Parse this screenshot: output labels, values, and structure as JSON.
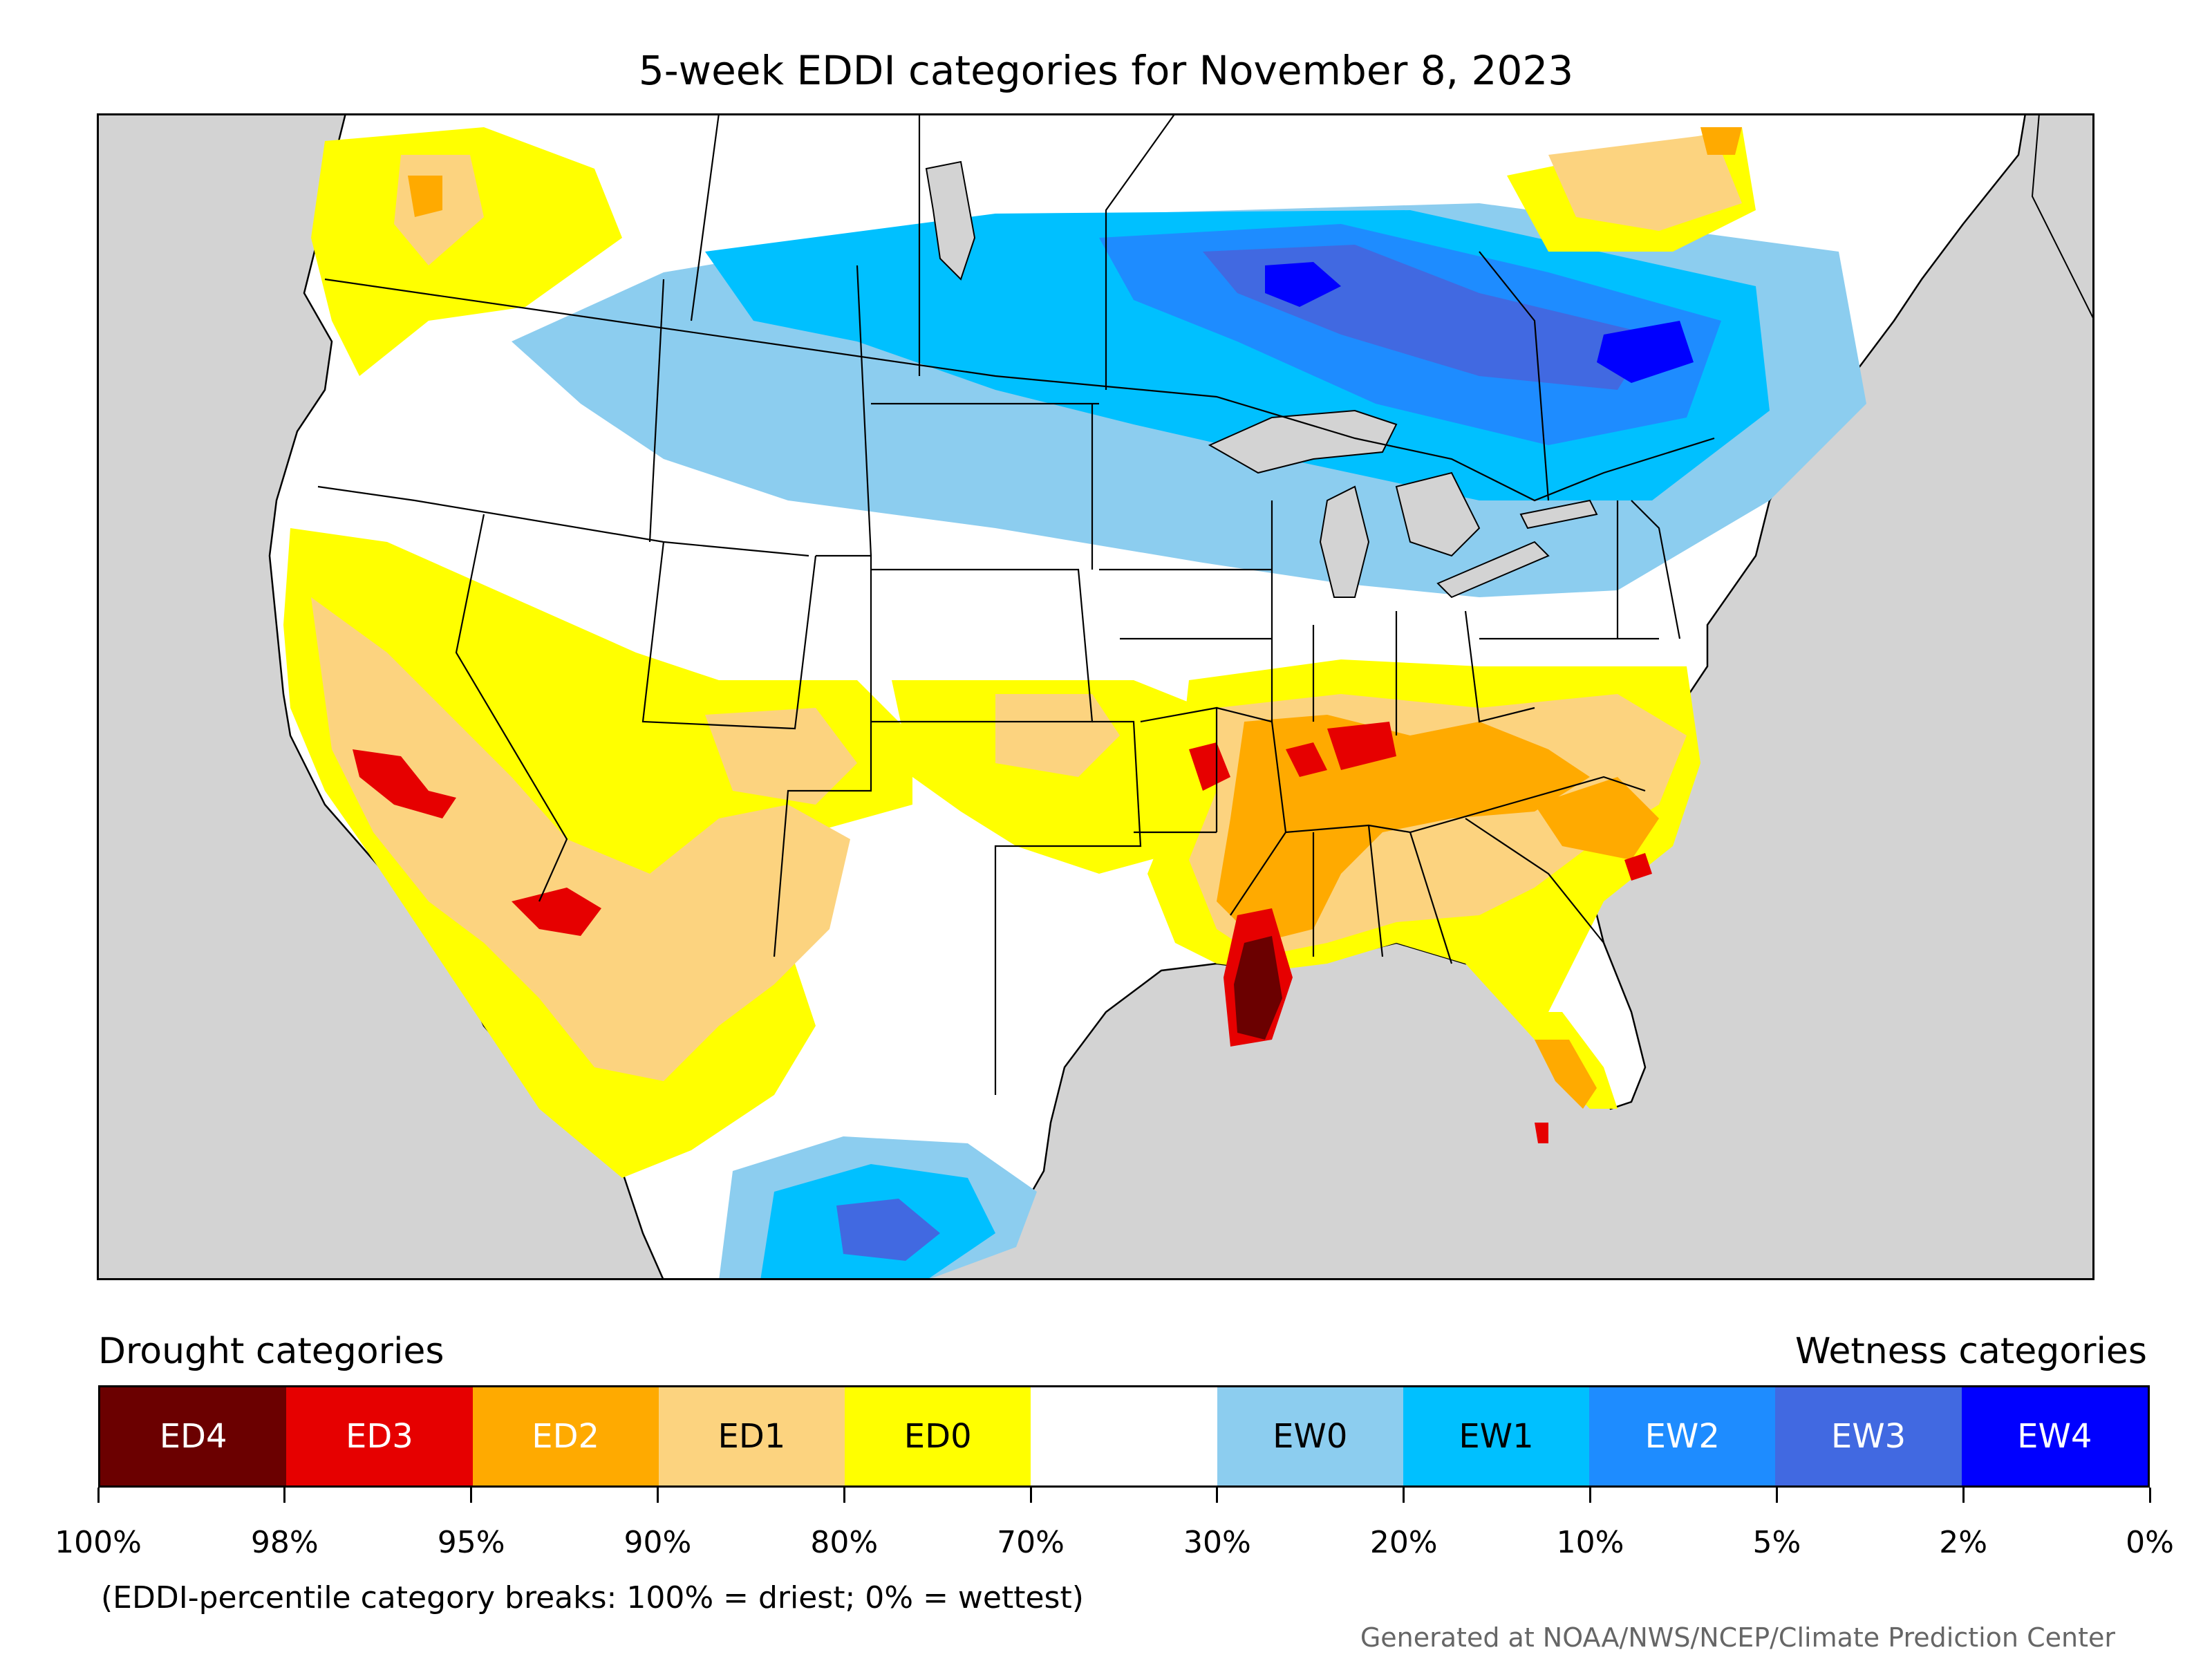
{
  "title": "5-week EDDI categories for November 8, 2023",
  "legend": {
    "drought_heading": "Drought categories",
    "wetness_heading": "Wetness categories",
    "categories": [
      {
        "label": "ED4",
        "color": "#6b0000",
        "text_color": "#ffffff"
      },
      {
        "label": "ED3",
        "color": "#e60000",
        "text_color": "#ffffff"
      },
      {
        "label": "ED2",
        "color": "#ffaa00",
        "text_color": "#ffffff"
      },
      {
        "label": "ED1",
        "color": "#fcd37f",
        "text_color": "#000000"
      },
      {
        "label": "ED0",
        "color": "#ffff00",
        "text_color": "#000000"
      },
      {
        "label": "",
        "color": "#ffffff",
        "text_color": "#000000"
      },
      {
        "label": "EW0",
        "color": "#8ccdef",
        "text_color": "#000000"
      },
      {
        "label": "EW1",
        "color": "#00c0ff",
        "text_color": "#000000"
      },
      {
        "label": "EW2",
        "color": "#1e8cff",
        "text_color": "#ffffff"
      },
      {
        "label": "EW3",
        "color": "#4169e1",
        "text_color": "#ffffff"
      },
      {
        "label": "EW4",
        "color": "#0000ff",
        "text_color": "#ffffff"
      }
    ],
    "breaks": [
      "100%",
      "98%",
      "95%",
      "90%",
      "80%",
      "70%",
      "30%",
      "20%",
      "10%",
      "5%",
      "2%",
      "0%"
    ]
  },
  "note": "(EDDI-percentile category breaks: 100% = driest; 0% = wettest)",
  "credit": "Generated at NOAA/NWS/NCEP/Climate Prediction Center",
  "map": {
    "ocean_color": "#d3d3d3",
    "land_color": "#ffffff",
    "lake_color": "#d3d3d3"
  }
}
